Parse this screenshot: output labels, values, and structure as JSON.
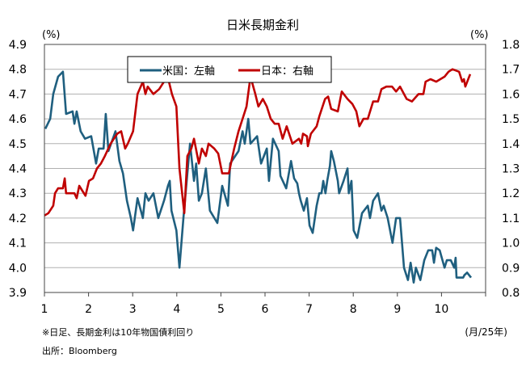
{
  "chart_data": {
    "type": "line",
    "title": "日米長期金利",
    "left_unit": "(%)",
    "right_unit": "(%)",
    "x_unit": "(月/25年)",
    "xlim": [
      1,
      11
    ],
    "x_ticks": [
      "1",
      "2",
      "3",
      "4",
      "5",
      "6",
      "7",
      "8",
      "9",
      "10"
    ],
    "left_ylim": [
      3.9,
      4.9
    ],
    "left_ticks": [
      "4.9",
      "4.8",
      "4.7",
      "4.6",
      "4.5",
      "4.4",
      "4.3",
      "4.2",
      "4.1",
      "4.0",
      "3.9"
    ],
    "right_ylim": [
      0.8,
      1.8
    ],
    "right_ticks": [
      "1.8",
      "1.7",
      "1.6",
      "1.5",
      "1.4",
      "1.3",
      "1.2",
      "1.1",
      "1.0",
      "0.9",
      "0.8"
    ],
    "grid": true,
    "legend_position": "top-center",
    "series": [
      {
        "name": "米国：左軸",
        "axis": "left",
        "color": "#1f5f7f",
        "x": [
          1.02,
          1.13,
          1.2,
          1.31,
          1.42,
          1.49,
          1.64,
          1.68,
          1.73,
          1.82,
          1.92,
          2.06,
          2.17,
          2.23,
          2.34,
          2.39,
          2.45,
          2.61,
          2.7,
          2.78,
          2.87,
          2.96,
          3.01,
          3.11,
          3.23,
          3.29,
          3.36,
          3.47,
          3.58,
          3.71,
          3.8,
          3.84,
          3.88,
          3.99,
          4.06,
          4.15,
          4.24,
          4.3,
          4.39,
          4.44,
          4.5,
          4.57,
          4.66,
          4.75,
          4.92,
          5.03,
          5.16,
          5.21,
          5.4,
          5.49,
          5.54,
          5.62,
          5.67,
          5.82,
          5.91,
          6.04,
          6.09,
          6.18,
          6.31,
          6.35,
          6.48,
          6.59,
          6.66,
          6.73,
          6.77,
          6.81,
          6.88,
          6.95,
          7.01,
          7.08,
          7.17,
          7.23,
          7.28,
          7.32,
          7.37,
          7.41,
          7.47,
          7.5,
          7.56,
          7.65,
          7.68,
          7.78,
          7.87,
          7.9,
          7.96,
          8.01,
          8.09,
          8.2,
          8.33,
          8.38,
          8.45,
          8.56,
          8.64,
          8.69,
          8.78,
          8.89,
          8.97,
          9.06,
          9.15,
          9.24,
          9.3,
          9.37,
          9.42,
          9.52,
          9.61,
          9.7,
          9.79,
          9.83,
          9.88,
          9.96,
          9.99,
          10.07,
          10.12,
          10.21,
          10.29,
          10.32,
          10.34,
          10.49,
          10.52,
          10.58,
          10.67
        ],
        "y": [
          4.56,
          4.6,
          4.7,
          4.77,
          4.79,
          4.62,
          4.63,
          4.58,
          4.63,
          4.55,
          4.52,
          4.53,
          4.42,
          4.48,
          4.48,
          4.62,
          4.47,
          4.55,
          4.43,
          4.38,
          4.27,
          4.2,
          4.15,
          4.28,
          4.2,
          4.3,
          4.27,
          4.3,
          4.2,
          4.27,
          4.33,
          4.35,
          4.23,
          4.15,
          4.0,
          4.2,
          4.38,
          4.5,
          4.35,
          4.42,
          4.27,
          4.3,
          4.4,
          4.23,
          4.18,
          4.33,
          4.25,
          4.42,
          4.47,
          4.55,
          4.5,
          4.6,
          4.5,
          4.53,
          4.42,
          4.48,
          4.35,
          4.52,
          4.47,
          4.37,
          4.32,
          4.43,
          4.36,
          4.34,
          4.3,
          4.27,
          4.23,
          4.28,
          4.17,
          4.14,
          4.25,
          4.3,
          4.3,
          4.35,
          4.3,
          4.35,
          4.41,
          4.47,
          4.43,
          4.35,
          4.3,
          4.35,
          4.4,
          4.3,
          4.35,
          4.15,
          4.12,
          4.22,
          4.25,
          4.2,
          4.27,
          4.3,
          4.23,
          4.25,
          4.2,
          4.1,
          4.2,
          4.2,
          4.0,
          3.95,
          4.02,
          3.94,
          4.0,
          3.95,
          4.03,
          4.07,
          4.07,
          4.02,
          4.08,
          4.07,
          4.05,
          4.0,
          4.03,
          4.03,
          4.0,
          4.04,
          3.96,
          3.96,
          3.97,
          3.98,
          3.96
        ]
      },
      {
        "name": "日本：右軸",
        "axis": "right",
        "color": "#c00000",
        "x": [
          1.0,
          1.09,
          1.2,
          1.24,
          1.31,
          1.42,
          1.46,
          1.49,
          1.68,
          1.73,
          1.79,
          1.93,
          2.01,
          2.1,
          2.19,
          2.28,
          2.37,
          2.5,
          2.65,
          2.74,
          2.83,
          2.89,
          3.01,
          3.11,
          3.23,
          3.29,
          3.34,
          3.47,
          3.6,
          3.71,
          3.78,
          3.89,
          3.99,
          4.06,
          4.17,
          4.24,
          4.33,
          4.39,
          4.5,
          4.57,
          4.66,
          4.72,
          4.85,
          4.94,
          5.03,
          5.18,
          5.3,
          5.4,
          5.49,
          5.58,
          5.67,
          5.78,
          5.85,
          5.95,
          6.04,
          6.13,
          6.22,
          6.31,
          6.4,
          6.49,
          6.62,
          6.77,
          6.82,
          6.86,
          6.95,
          6.97,
          7.04,
          7.17,
          7.23,
          7.36,
          7.43,
          7.5,
          7.65,
          7.74,
          7.87,
          7.98,
          8.07,
          8.14,
          8.23,
          8.33,
          8.45,
          8.56,
          8.64,
          8.75,
          8.88,
          8.97,
          9.06,
          9.21,
          9.33,
          9.48,
          9.59,
          9.64,
          9.75,
          9.88,
          10.07,
          10.16,
          10.25,
          10.4,
          10.47,
          10.51,
          10.54,
          10.65
        ],
        "y": [
          1.11,
          1.12,
          1.15,
          1.2,
          1.22,
          1.22,
          1.26,
          1.2,
          1.2,
          1.18,
          1.23,
          1.19,
          1.25,
          1.26,
          1.3,
          1.32,
          1.35,
          1.4,
          1.44,
          1.45,
          1.38,
          1.4,
          1.45,
          1.6,
          1.65,
          1.6,
          1.63,
          1.6,
          1.62,
          1.65,
          1.68,
          1.6,
          1.55,
          1.3,
          1.12,
          1.35,
          1.38,
          1.42,
          1.32,
          1.38,
          1.35,
          1.4,
          1.38,
          1.36,
          1.28,
          1.28,
          1.38,
          1.45,
          1.5,
          1.55,
          1.67,
          1.6,
          1.55,
          1.58,
          1.55,
          1.5,
          1.48,
          1.48,
          1.42,
          1.47,
          1.4,
          1.42,
          1.4,
          1.44,
          1.43,
          1.39,
          1.44,
          1.47,
          1.51,
          1.58,
          1.59,
          1.54,
          1.53,
          1.61,
          1.58,
          1.56,
          1.53,
          1.47,
          1.5,
          1.5,
          1.57,
          1.57,
          1.62,
          1.63,
          1.63,
          1.61,
          1.63,
          1.58,
          1.57,
          1.6,
          1.6,
          1.65,
          1.66,
          1.65,
          1.67,
          1.69,
          1.7,
          1.69,
          1.65,
          1.66,
          1.63,
          1.68
        ]
      }
    ]
  },
  "footnote": "※日足、長期金利は10年物国債利回り",
  "source": "出所：Bloomberg"
}
